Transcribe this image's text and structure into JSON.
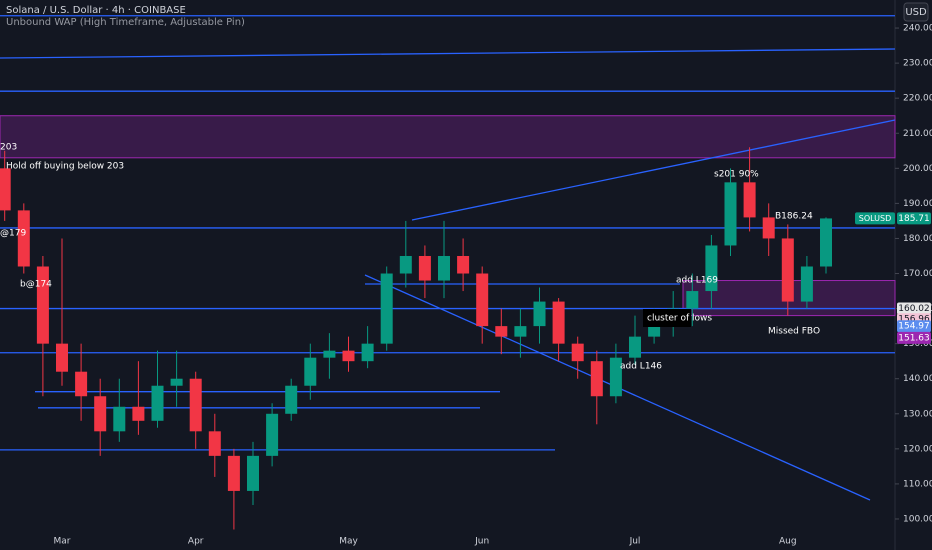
{
  "chart_data": {
    "type": "candlestick",
    "title": "Solana / U.S. Dollar · 4h · COINBASE",
    "subtitle": "Unbound WAP (High Timeframe, Adjustable Pin)",
    "currency": "USD",
    "categories": [
      null,
      null,
      null,
      "Mar",
      null,
      null,
      null,
      null,
      null,
      null,
      "Apr",
      null,
      null,
      null,
      null,
      null,
      null,
      null,
      "May",
      null,
      null,
      null,
      null,
      null,
      null,
      "Jun",
      null,
      null,
      null,
      null,
      null,
      null,
      null,
      "Jul",
      null,
      null,
      null,
      null,
      null,
      null,
      null,
      "Aug",
      null,
      null
    ],
    "open": [
      200,
      188,
      172,
      150,
      142,
      135,
      125,
      132,
      128,
      138,
      140,
      125,
      118,
      108,
      118,
      130,
      138,
      146,
      148,
      145,
      150,
      170,
      175,
      168,
      175,
      170,
      155,
      152,
      155,
      162,
      150,
      145,
      135,
      146,
      152,
      155,
      160,
      165,
      178,
      196,
      186,
      180,
      162,
      172
    ],
    "high": [
      205,
      190,
      175,
      180,
      150,
      140,
      140,
      145,
      148,
      148,
      142,
      130,
      120,
      122,
      133,
      140,
      150,
      153,
      152,
      155,
      172,
      185,
      178,
      185,
      180,
      172,
      160,
      160,
      166,
      163,
      152,
      148,
      150,
      158,
      160,
      165,
      170,
      181,
      200,
      206,
      190,
      184,
      175,
      186
    ],
    "low": [
      185,
      170,
      135,
      138,
      128,
      118,
      122,
      124,
      126,
      132,
      120,
      112,
      97,
      104,
      115,
      128,
      134,
      140,
      142,
      143,
      148,
      166,
      163,
      163,
      165,
      150,
      147,
      146,
      150,
      145,
      140,
      127,
      133,
      144,
      150,
      152,
      155,
      160,
      175,
      182,
      175,
      158,
      160,
      170
    ],
    "close": [
      188,
      172,
      150,
      142,
      135,
      125,
      132,
      128,
      138,
      140,
      125,
      118,
      108,
      118,
      130,
      138,
      146,
      148,
      145,
      150,
      170,
      175,
      168,
      175,
      170,
      155,
      152,
      155,
      162,
      150,
      145,
      135,
      146,
      152,
      155,
      160,
      165,
      178,
      196,
      186,
      180,
      162,
      172,
      185.71
    ],
    "up_color": "#089981",
    "down_color": "#f23645",
    "ylim": [
      97,
      248
    ],
    "yticks": [
      {
        "value": 100,
        "label": "100.00"
      },
      {
        "value": 110,
        "label": "110.00"
      },
      {
        "value": 120,
        "label": "120.00"
      },
      {
        "value": 130,
        "label": "130.00"
      },
      {
        "value": 140,
        "label": "140.00"
      },
      {
        "value": 150,
        "label": "150.00"
      },
      {
        "value": 160,
        "label": "160.00"
      },
      {
        "value": 170,
        "label": "170.00"
      },
      {
        "value": 180,
        "label": "180.00"
      },
      {
        "value": 190,
        "label": "190.00"
      },
      {
        "value": 200,
        "label": "200.00"
      },
      {
        "value": 210,
        "label": "210.00"
      },
      {
        "value": 220,
        "label": "220.00"
      },
      {
        "value": 230,
        "label": "230.00"
      },
      {
        "value": 240,
        "label": "240.00"
      }
    ],
    "levels": [
      243.5,
      222,
      183,
      167,
      160,
      147.4,
      136.3,
      131.7,
      119.7
    ],
    "level_color": "#2962ff",
    "zones": [
      {
        "low": 203,
        "high": 215
      },
      {
        "low": 158,
        "high": 168
      }
    ],
    "annotations": [
      "203",
      "Hold off buying below 203",
      "@179",
      "b@174",
      "s201 90%",
      "B186.24",
      "add L169",
      "cluster of lows",
      "Missed FBO",
      "add L146"
    ],
    "price_labels": [
      {
        "label": "SOLUSD",
        "value": 185.71,
        "color": "#089981"
      },
      {
        "value": 160.02,
        "color": "#e6e6e6"
      },
      {
        "value": 156.96,
        "color": "#f3c4d6"
      },
      {
        "value": 154.97,
        "color": "#5b8def"
      },
      {
        "value": 151.63,
        "color": "#9c27b0"
      }
    ]
  }
}
